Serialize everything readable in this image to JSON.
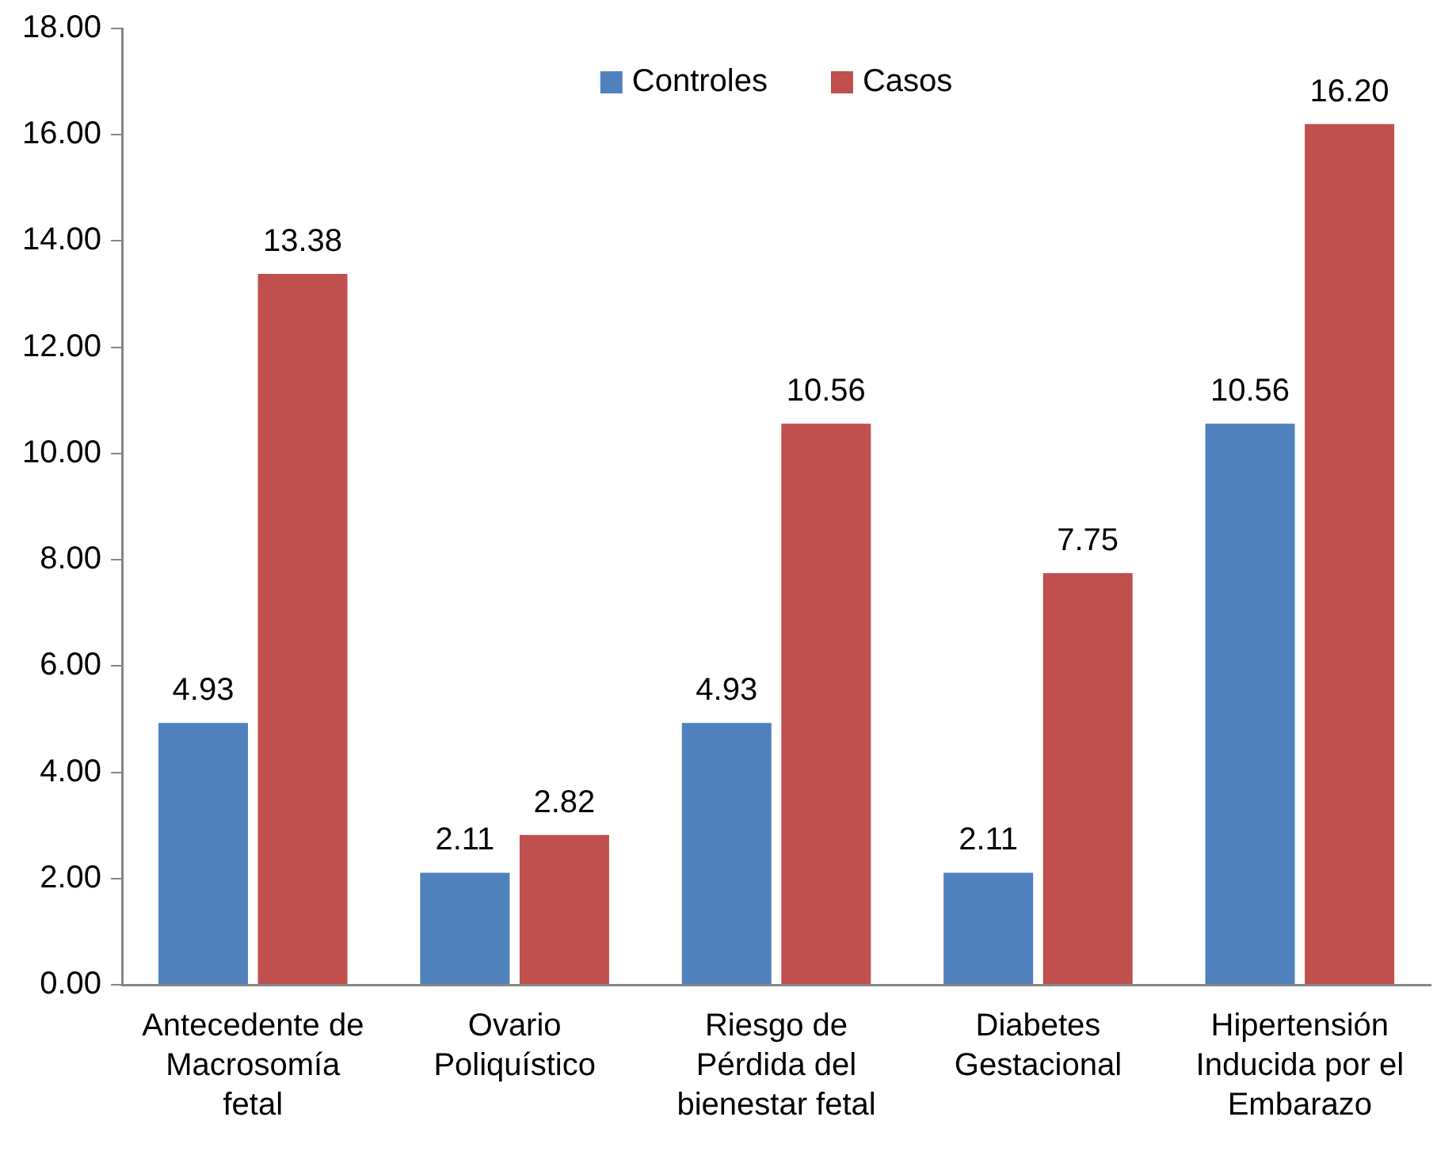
{
  "chart_data": {
    "type": "bar",
    "categories": [
      "Antecedente de Macrosomía fetal",
      "Ovario Poliquístico",
      "Riesgo de Pérdida del bienestar fetal",
      "Diabetes Gestacional",
      "Hipertensión Inducida por el Embarazo"
    ],
    "series": [
      {
        "name": "Controles",
        "color": "#4f81bd",
        "values": [
          4.93,
          2.11,
          4.93,
          2.11,
          10.56
        ],
        "value_labels": [
          "4.93",
          "2.11",
          "4.93",
          "2.11",
          "10.56"
        ]
      },
      {
        "name": "Casos",
        "color": "#c0504d",
        "values": [
          13.38,
          2.82,
          10.56,
          7.75,
          16.2
        ],
        "value_labels": [
          "13.38",
          "2.82",
          "10.56",
          "7.75",
          "16.20"
        ]
      }
    ],
    "ylim": [
      0,
      18
    ],
    "yticks": [
      {
        "value": 0,
        "label": "0.00"
      },
      {
        "value": 2,
        "label": "2.00"
      },
      {
        "value": 4,
        "label": "4.00"
      },
      {
        "value": 6,
        "label": "6.00"
      },
      {
        "value": 8,
        "label": "8.00"
      },
      {
        "value": 10,
        "label": "10.00"
      },
      {
        "value": 12,
        "label": "12.00"
      },
      {
        "value": 14,
        "label": "14.00"
      },
      {
        "value": 16,
        "label": "16.00"
      },
      {
        "value": 18,
        "label": "18.00"
      }
    ],
    "grid": false,
    "legend": "top"
  }
}
